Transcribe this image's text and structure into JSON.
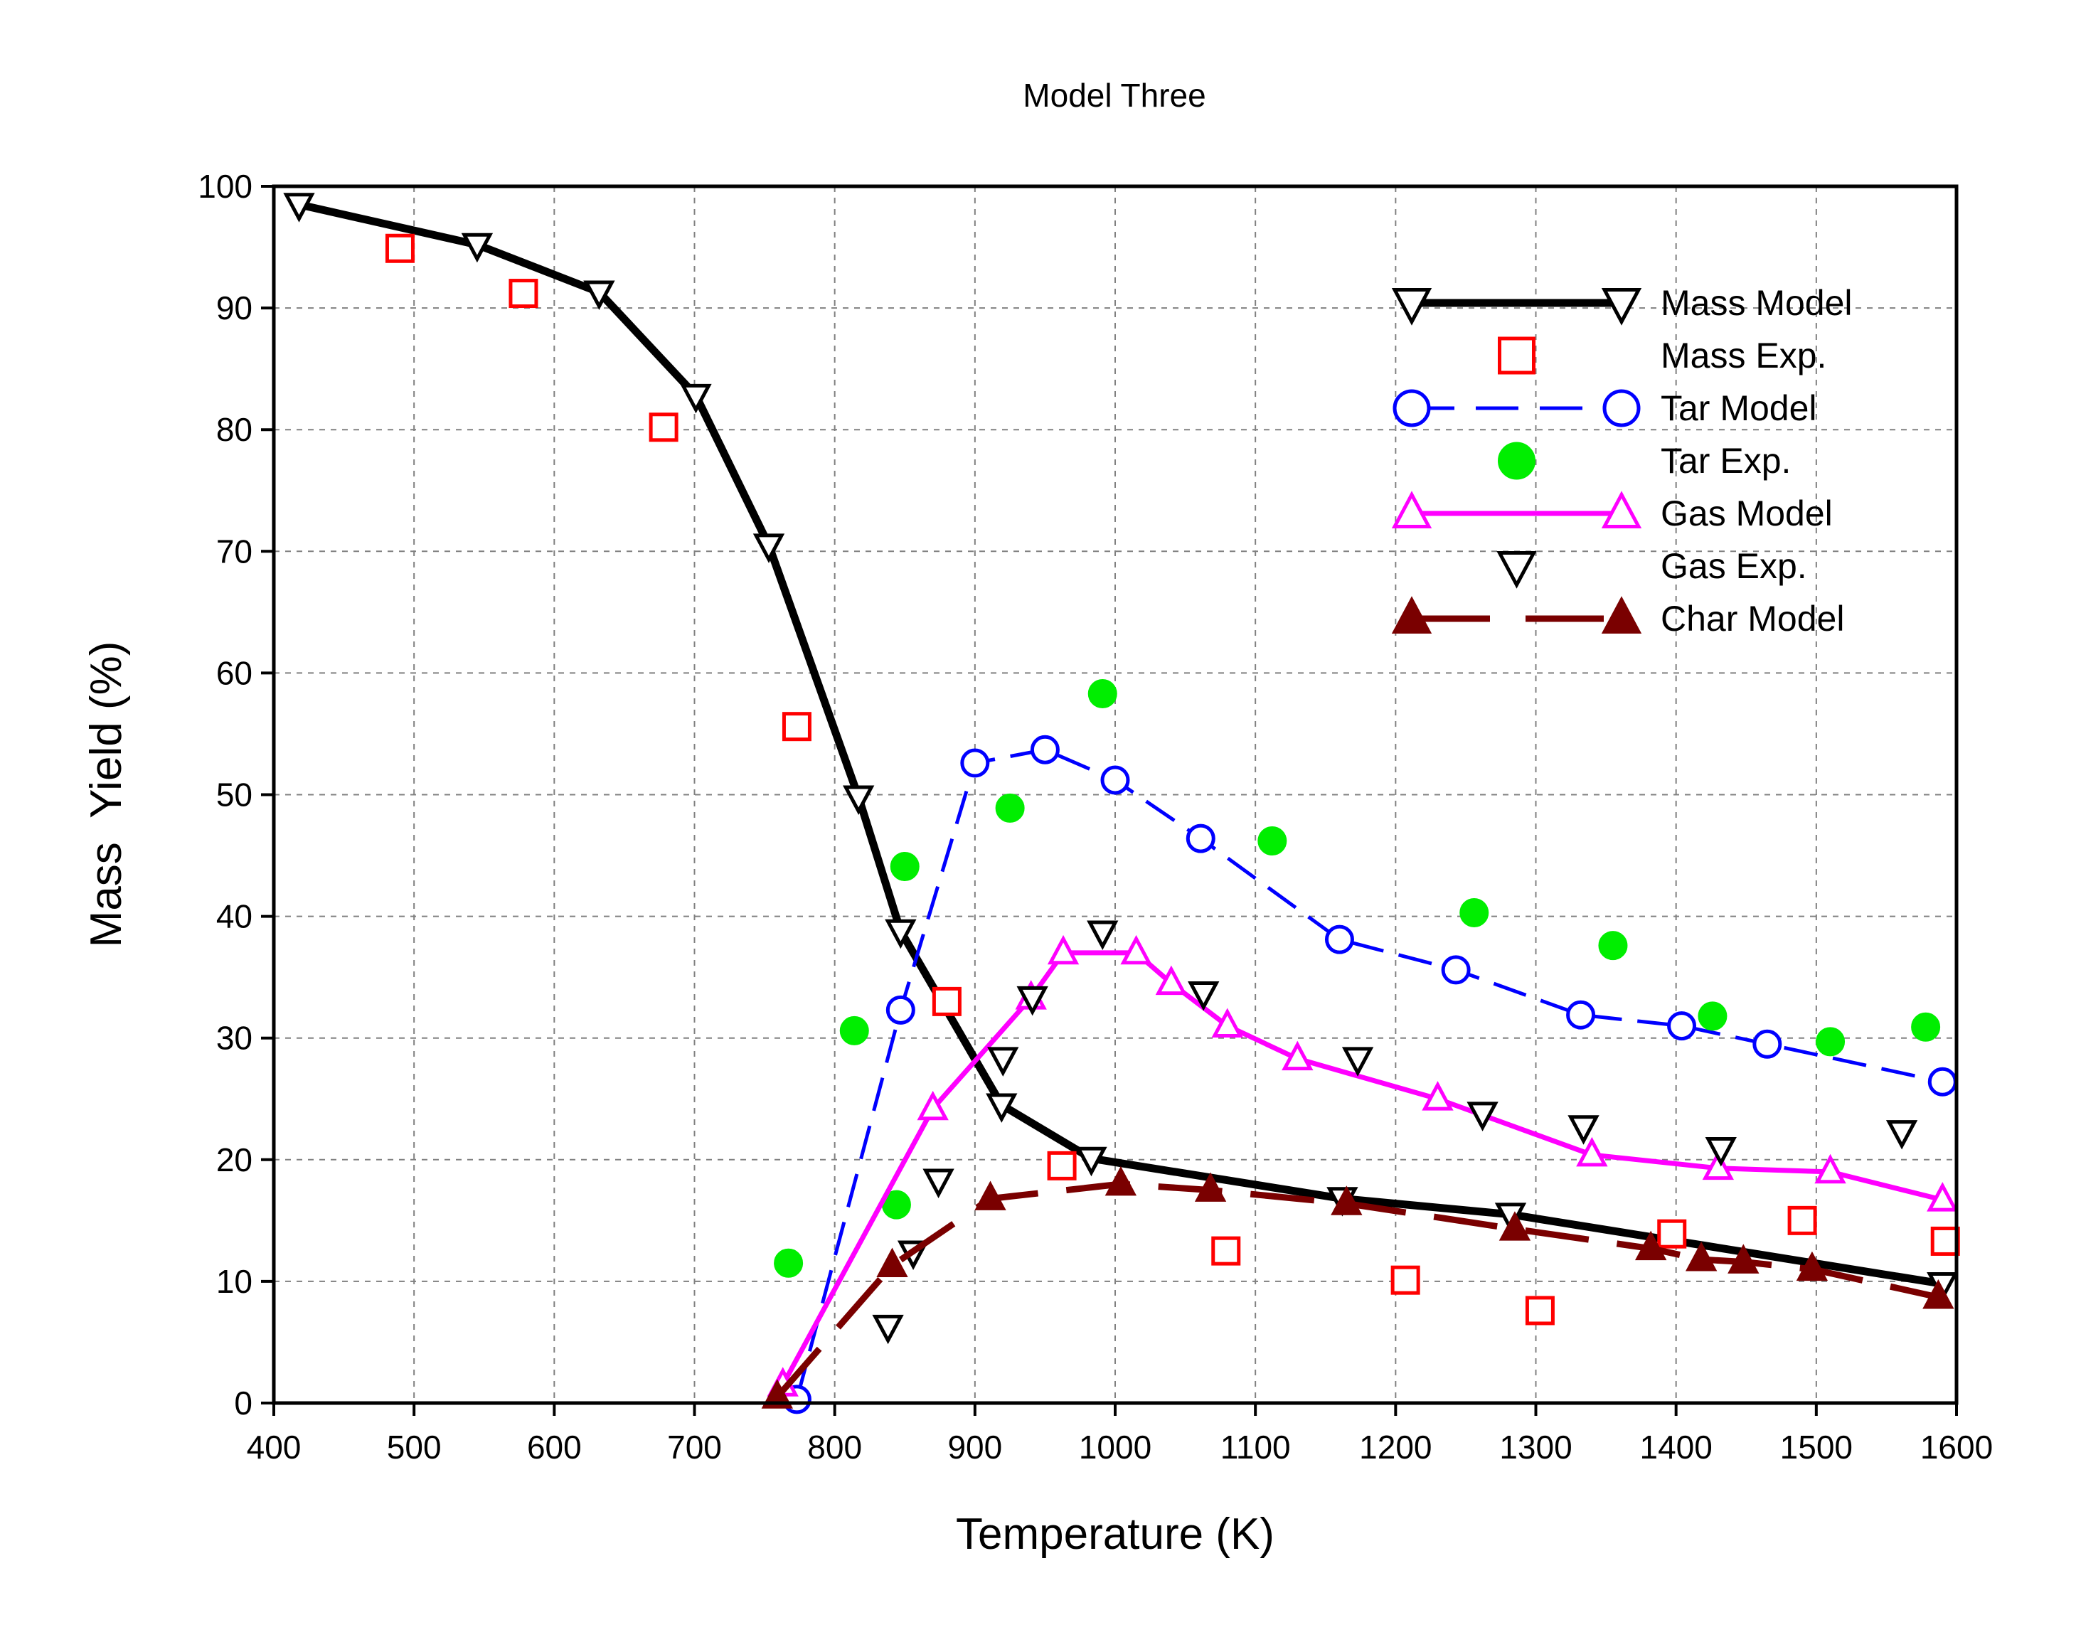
{
  "chart_data": {
    "type": "line",
    "title": "Model Three",
    "xlabel": "Temperature (K)",
    "ylabel": "Mass  Yield (%)",
    "xlim": [
      400,
      1600
    ],
    "ylim": [
      0,
      100
    ],
    "xticks": [
      400,
      500,
      600,
      700,
      800,
      900,
      1000,
      1100,
      1200,
      1300,
      1400,
      1500,
      1600
    ],
    "yticks": [
      0,
      10,
      20,
      30,
      40,
      50,
      60,
      70,
      80,
      90,
      100
    ],
    "grid": true,
    "legend_position": "top-right",
    "series": [
      {
        "key": "mass_model",
        "name": "Mass Model",
        "color": "#000000",
        "line": "solid",
        "marker": "triangle-down",
        "marker_fill": "none",
        "x": [
          418,
          545,
          632,
          701,
          753,
          817,
          847,
          919,
          983,
          1162,
          1282,
          1590
        ],
        "y": [
          98.5,
          95.2,
          91.3,
          82.8,
          70.5,
          49.8,
          38.8,
          24.5,
          20.1,
          16.8,
          15.5,
          9.8
        ]
      },
      {
        "key": "mass_exp",
        "name": "Mass Exp.",
        "color": "#ff0000",
        "line": "none",
        "marker": "square",
        "marker_fill": "none",
        "x": [
          490,
          578,
          678,
          773,
          880,
          962,
          1079,
          1207,
          1303,
          1397,
          1490,
          1592
        ],
        "y": [
          94.9,
          91.2,
          80.2,
          55.6,
          33.0,
          19.5,
          12.5,
          10.1,
          7.6,
          13.9,
          15.0,
          13.3
        ]
      },
      {
        "key": "tar_model",
        "name": "Tar Model",
        "color": "#0000ff",
        "line": "dashed",
        "marker": "circle",
        "marker_fill": "none",
        "x": [
          773,
          847,
          900,
          950,
          1000,
          1061,
          1160,
          1243,
          1332,
          1404,
          1465,
          1590
        ],
        "y": [
          0.3,
          32.3,
          52.6,
          53.7,
          51.2,
          46.4,
          38.1,
          35.6,
          31.9,
          31.0,
          29.5,
          26.4
        ]
      },
      {
        "key": "tar_exp",
        "name": "Tar Exp.",
        "color": "#00ee00",
        "line": "none",
        "marker": "circle",
        "marker_fill": "#00ee00",
        "x": [
          767,
          814,
          844,
          850,
          925,
          991,
          1112,
          1256,
          1355,
          1426,
          1510,
          1578
        ],
        "y": [
          11.5,
          30.6,
          16.3,
          44.1,
          48.9,
          58.3,
          46.2,
          40.3,
          37.6,
          31.8,
          29.7,
          30.9
        ]
      },
      {
        "key": "gas_model",
        "name": "Gas Model",
        "color": "#ff00ff",
        "line": "solid",
        "marker": "triangle-up",
        "marker_fill": "none",
        "x": [
          763,
          870,
          940,
          963,
          1015,
          1040,
          1080,
          1130,
          1230,
          1340,
          1430,
          1510,
          1590
        ],
        "y": [
          1.5,
          24.2,
          33.3,
          37.0,
          37.0,
          34.5,
          31.0,
          28.3,
          25.0,
          20.4,
          19.3,
          19.0,
          16.7
        ]
      },
      {
        "key": "gas_exp",
        "name": "Gas Exp.",
        "color": "#000000",
        "line": "none",
        "marker": "triangle-down",
        "marker_fill": "none",
        "x": [
          838,
          856,
          874,
          920,
          941,
          991,
          1063,
          1173,
          1262,
          1334,
          1432,
          1561
        ],
        "y": [
          6.3,
          12.4,
          18.3,
          28.3,
          33.3,
          38.7,
          33.7,
          28.3,
          23.8,
          22.7,
          20.9,
          22.3
        ]
      },
      {
        "key": "char_model",
        "name": "Char Model",
        "color": "#7a0000",
        "line": "longdash",
        "marker": "triangle-up",
        "marker_fill": "#7a0000",
        "x": [
          759,
          841,
          911,
          1004,
          1068,
          1165,
          1285,
          1382,
          1418,
          1448,
          1497,
          1587
        ],
        "y": [
          0.5,
          11.3,
          16.8,
          18.0,
          17.5,
          16.4,
          14.3,
          12.7,
          11.8,
          11.6,
          11.0,
          8.7
        ]
      }
    ]
  }
}
